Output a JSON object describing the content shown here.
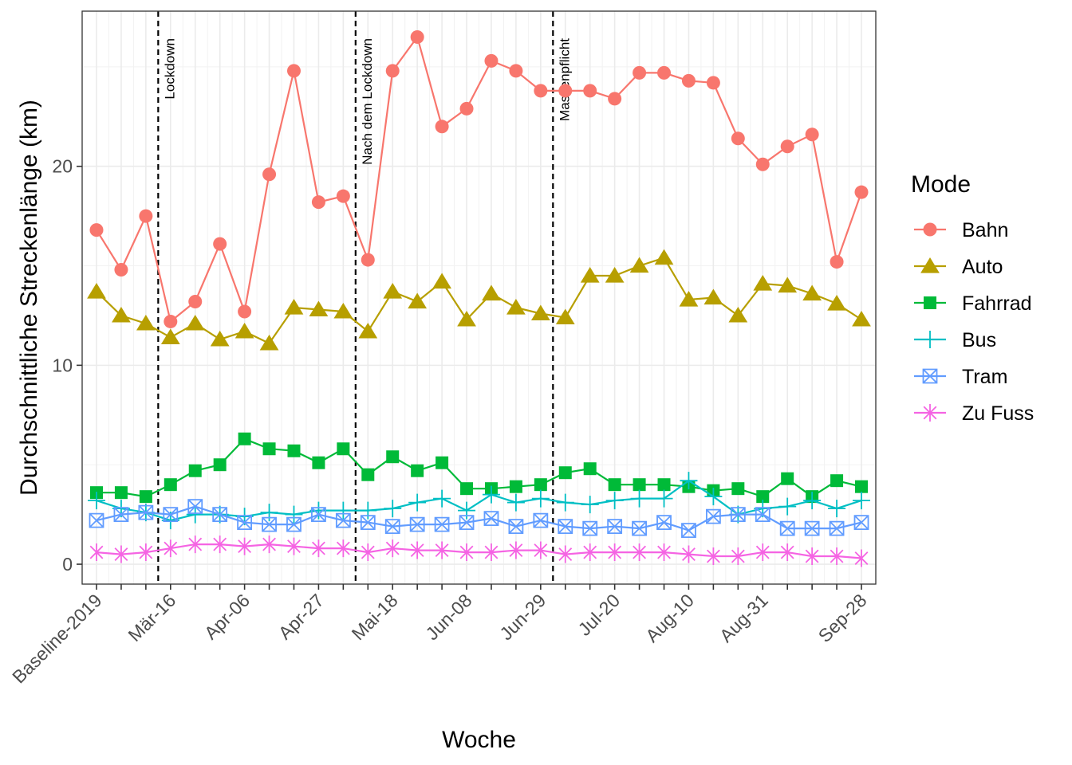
{
  "chart_data": {
    "type": "line",
    "xlabel": "Woche",
    "ylabel": "Durchschnittliche Streckenlänge (km)",
    "ylim": [
      -1,
      27.8
    ],
    "yticks": [
      0,
      10,
      20
    ],
    "grid": true,
    "legend": {
      "title": "Mode",
      "position": "right"
    },
    "categories": [
      "Baseline-2019",
      "Mär-02",
      "Mär-09",
      "Mär-16",
      "Mär-23",
      "Mär-30",
      "Apr-06",
      "Apr-13",
      "Apr-20",
      "Apr-27",
      "Mai-04",
      "Mai-11",
      "Mai-18",
      "Mai-25",
      "Jun-01",
      "Jun-08",
      "Jun-15",
      "Jun-22",
      "Jun-29",
      "Jul-06",
      "Jul-13",
      "Jul-20",
      "Jul-27",
      "Aug-03",
      "Aug-10",
      "Aug-17",
      "Aug-24",
      "Aug-31",
      "Sep-07",
      "Sep-14",
      "Sep-21",
      "Sep-28"
    ],
    "tick_labels": [
      "Baseline-2019",
      "Mär-16",
      "Apr-06",
      "Apr-27",
      "Mai-18",
      "Jun-08",
      "Jun-29",
      "Jul-20",
      "Aug-10",
      "Aug-31",
      "Sep-28"
    ],
    "tick_indices": [
      0,
      3,
      6,
      9,
      12,
      15,
      18,
      21,
      24,
      27,
      31
    ],
    "annotations": [
      {
        "label": "Lockdown",
        "x": 2.5
      },
      {
        "label": "Nach dem Lockdown",
        "x": 10.5
      },
      {
        "label": "Maskenpflicht",
        "x": 18.5
      }
    ],
    "series": [
      {
        "name": "Bahn",
        "color": "#F8766D",
        "marker": "circle",
        "values": [
          16.8,
          14.8,
          17.5,
          12.2,
          13.2,
          16.1,
          12.7,
          19.6,
          24.8,
          18.2,
          18.5,
          15.3,
          24.8,
          26.5,
          22.0,
          22.9,
          25.3,
          24.8,
          23.8,
          23.8,
          23.8,
          23.4,
          24.7,
          24.7,
          24.3,
          24.2,
          21.4,
          20.1,
          21.0,
          21.6,
          15.2,
          18.7
        ]
      },
      {
        "name": "Auto",
        "color": "#B79F00",
        "marker": "triangle",
        "values": [
          13.7,
          12.5,
          12.1,
          11.4,
          12.1,
          11.3,
          11.7,
          11.1,
          12.9,
          12.8,
          12.7,
          11.7,
          13.7,
          13.2,
          14.2,
          12.3,
          13.6,
          12.9,
          12.6,
          12.4,
          14.5,
          14.5,
          15.0,
          15.4,
          13.3,
          13.4,
          12.5,
          14.1,
          14.0,
          13.6,
          13.1,
          12.3
        ]
      },
      {
        "name": "Fahrrad",
        "color": "#00BA38",
        "marker": "square",
        "values": [
          3.6,
          3.6,
          3.4,
          4.0,
          4.7,
          5.0,
          6.3,
          5.8,
          5.7,
          5.1,
          5.8,
          4.5,
          5.4,
          4.7,
          5.1,
          3.8,
          3.8,
          3.9,
          4.0,
          4.6,
          4.8,
          4.0,
          4.0,
          4.0,
          3.9,
          3.7,
          3.8,
          3.4,
          4.3,
          3.4,
          4.2,
          3.9
        ]
      },
      {
        "name": "Bus",
        "color": "#00BFC4",
        "marker": "plus",
        "values": [
          3.2,
          2.8,
          2.6,
          2.2,
          2.5,
          2.5,
          2.4,
          2.6,
          2.5,
          2.7,
          2.7,
          2.7,
          2.8,
          3.1,
          3.3,
          2.7,
          3.5,
          3.1,
          3.3,
          3.1,
          3.0,
          3.2,
          3.3,
          3.3,
          4.2,
          3.4,
          2.5,
          2.8,
          2.9,
          3.2,
          2.8,
          3.2
        ]
      },
      {
        "name": "Tram",
        "color": "#619CFF",
        "marker": "boxx",
        "values": [
          2.2,
          2.5,
          2.6,
          2.5,
          2.9,
          2.5,
          2.1,
          2.0,
          2.0,
          2.5,
          2.2,
          2.1,
          1.9,
          2.0,
          2.0,
          2.1,
          2.3,
          1.9,
          2.2,
          1.9,
          1.8,
          1.9,
          1.8,
          2.1,
          1.7,
          2.4,
          2.5,
          2.5,
          1.8,
          1.8,
          1.8,
          2.1
        ]
      },
      {
        "name": "Zu Fuss",
        "color": "#F564E3",
        "marker": "asterisk",
        "values": [
          0.6,
          0.5,
          0.6,
          0.8,
          1.0,
          1.0,
          0.9,
          1.0,
          0.9,
          0.8,
          0.8,
          0.6,
          0.8,
          0.7,
          0.7,
          0.6,
          0.6,
          0.7,
          0.7,
          0.5,
          0.6,
          0.6,
          0.6,
          0.6,
          0.5,
          0.4,
          0.4,
          0.6,
          0.6,
          0.4,
          0.4,
          0.3
        ]
      }
    ]
  }
}
